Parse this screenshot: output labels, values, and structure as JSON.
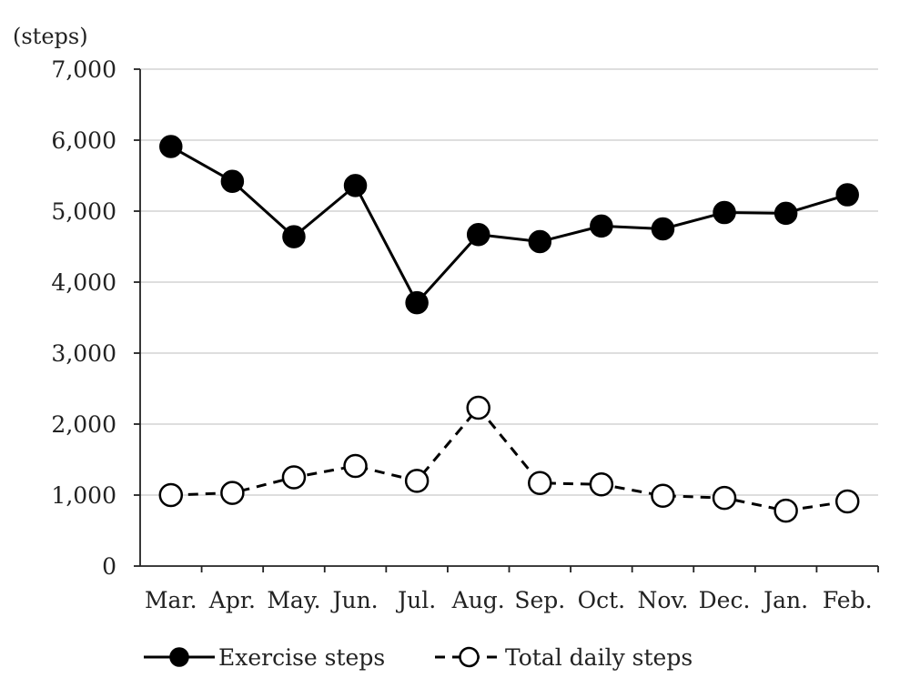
{
  "chart_data": {
    "type": "line",
    "title": "",
    "xlabel": "",
    "ylabel": "(steps)",
    "ylim": [
      0,
      7000
    ],
    "yticks": [
      0,
      1000,
      2000,
      3000,
      4000,
      5000,
      6000,
      7000
    ],
    "ytick_labels": [
      "0",
      "1,000",
      "2,000",
      "3,000",
      "4,000",
      "5,000",
      "6,000",
      "7,000"
    ],
    "grid": true,
    "legend_position": "bottom",
    "categories": [
      "Mar.",
      "Apr.",
      "May.",
      "Jun.",
      "Jul.",
      "Aug.",
      "Sep.",
      "Oct.",
      "Nov.",
      "Dec.",
      "Jan.",
      "Feb."
    ],
    "series": [
      {
        "name": "Exercise steps",
        "values": [
          5910,
          5420,
          4640,
          5360,
          3710,
          4670,
          4570,
          4790,
          4750,
          4980,
          4970,
          5230
        ],
        "color": "#000000",
        "line_style": "solid",
        "marker": "filled-circle"
      },
      {
        "name": "Total daily steps",
        "values": [
          1000,
          1030,
          1250,
          1410,
          1200,
          2230,
          1170,
          1150,
          990,
          960,
          780,
          910
        ],
        "color": "#000000",
        "line_style": "dashed",
        "marker": "open-circle"
      }
    ]
  }
}
